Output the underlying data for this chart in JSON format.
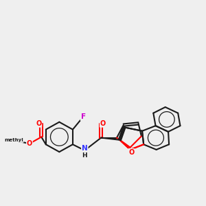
{
  "background_color": "#efefef",
  "bond_color": "#1a1a1a",
  "bond_width": 1.5,
  "atom_colors": {
    "O": "#ff0000",
    "N": "#3333ff",
    "F": "#cc00cc",
    "C": "#1a1a1a"
  },
  "figsize": [
    3.0,
    3.0
  ],
  "dpi": 100
}
